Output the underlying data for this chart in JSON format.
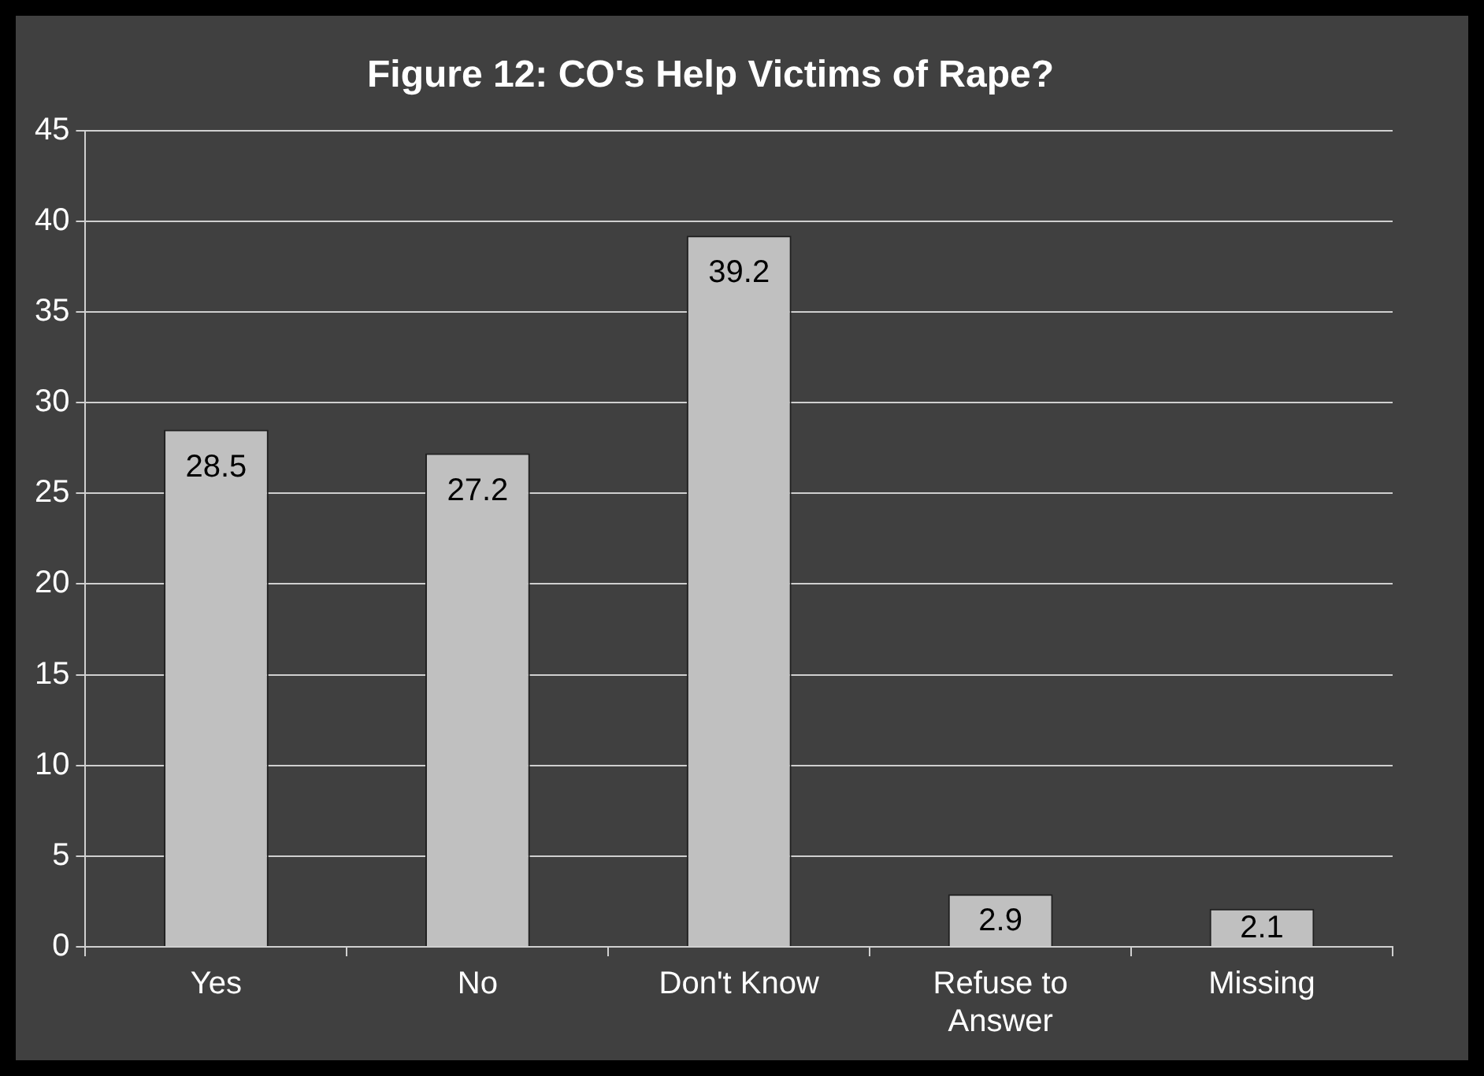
{
  "chart_data": {
    "type": "bar",
    "title": "Figure 12: CO's Help Victims of Rape?",
    "categories": [
      "Yes",
      "No",
      "Don't Know",
      "Refuse to Answer",
      "Missing"
    ],
    "values": [
      28.5,
      27.2,
      39.2,
      2.9,
      2.1
    ],
    "color": "#c0c0c0",
    "ylim": [
      0,
      45
    ],
    "yticks": [
      0,
      5,
      10,
      15,
      20,
      25,
      30,
      35,
      40,
      45
    ],
    "grid": "y",
    "data_labels": true,
    "legend": false
  }
}
